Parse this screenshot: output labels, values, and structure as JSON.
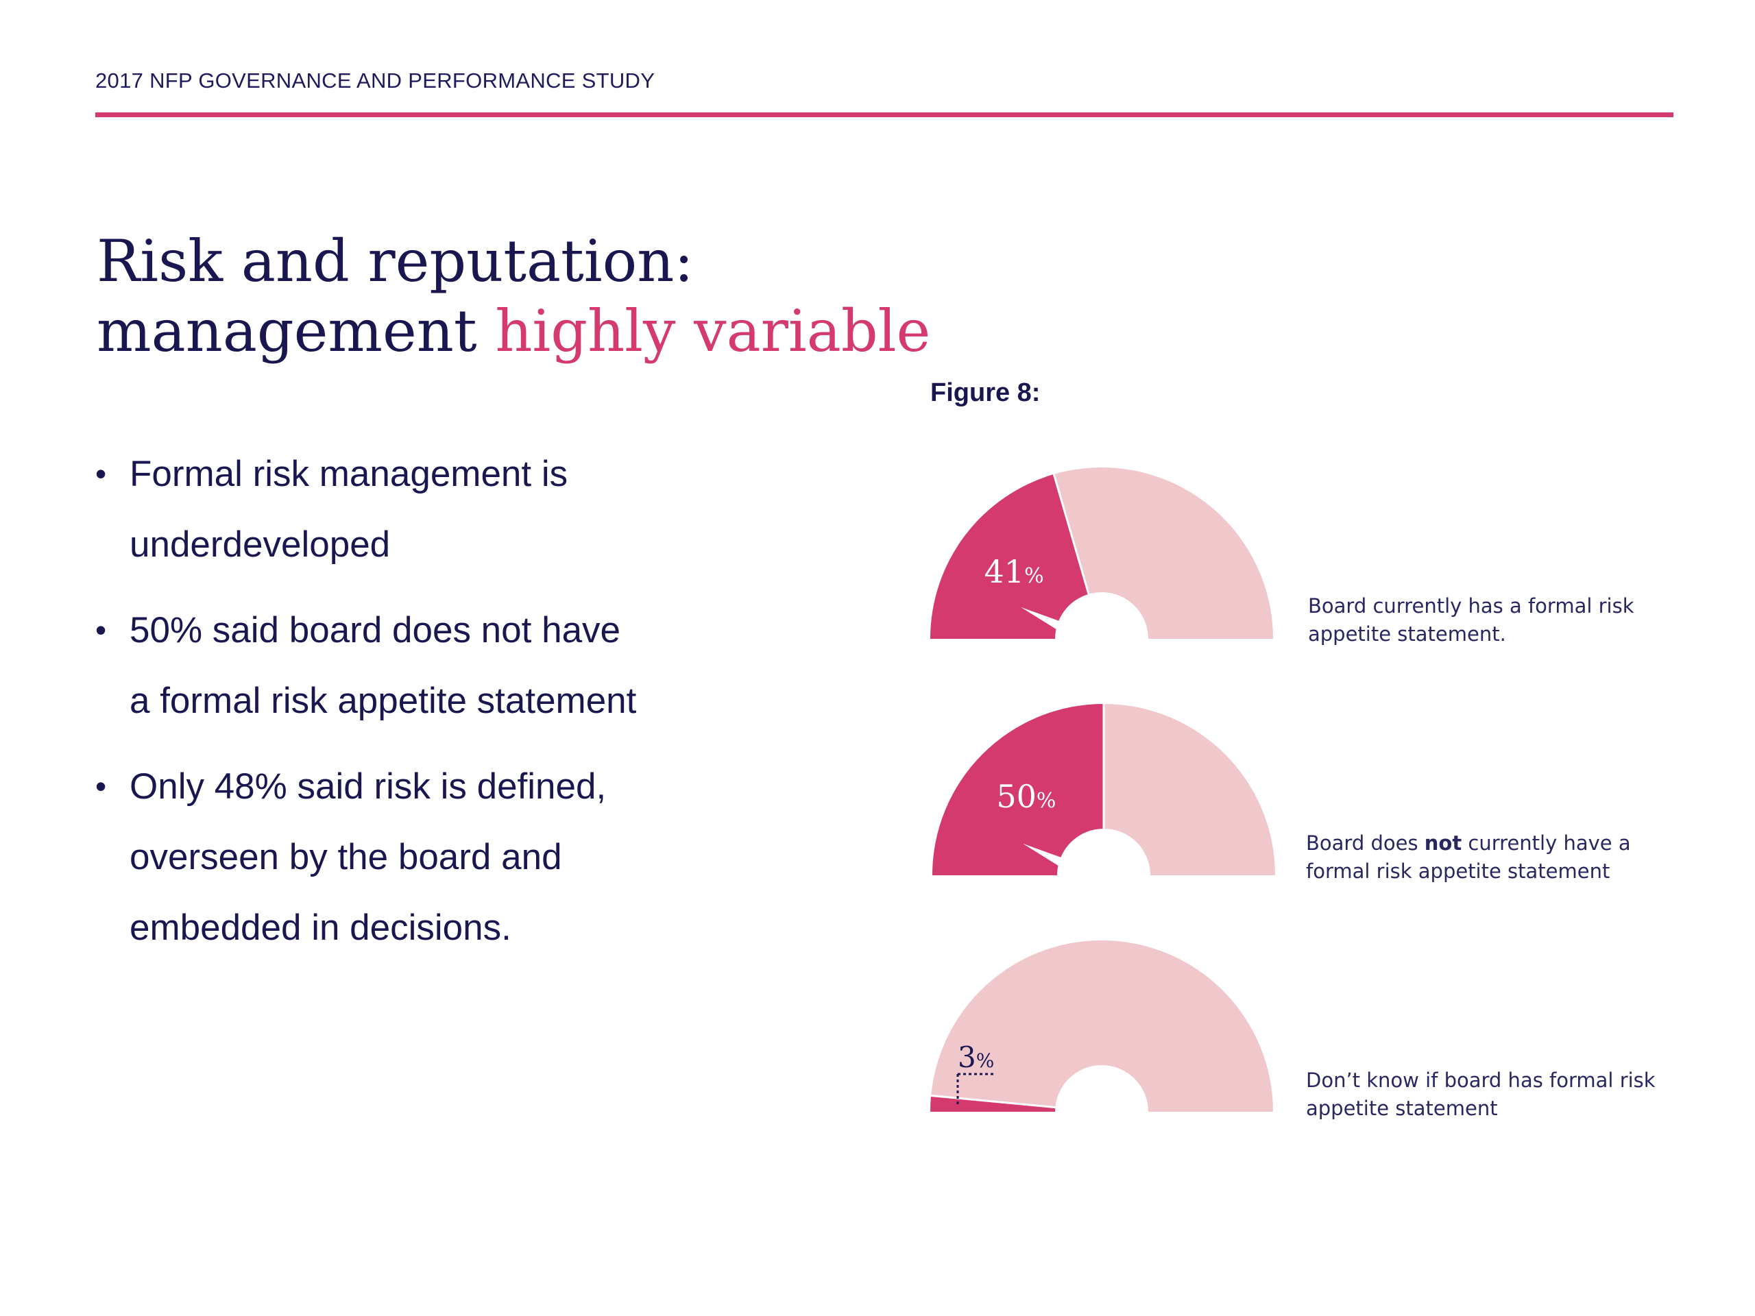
{
  "header": {
    "title": "2017 NFP GOVERNANCE AND PERFORMANCE STUDY"
  },
  "heading": {
    "line1": "Risk and reputation:",
    "line2_plain": "management ",
    "line2_accent": "highly variable"
  },
  "bullets": [
    {
      "line1": "Formal risk management is",
      "line2": "underdeveloped"
    },
    {
      "line1": "50% said board does not have",
      "line2": "a formal risk appetite statement"
    },
    {
      "line1": "Only 48% said risk is defined,",
      "line2": "overseen by the board and",
      "line3": "embedded in decisions."
    }
  ],
  "figure": {
    "label": "Figure 8:"
  },
  "colors": {
    "accent": "#d43a6e",
    "light": "#f0c8cc",
    "text": "#1a1650"
  },
  "chart_data": {
    "type": "pie",
    "style": "semicircle-gauge",
    "unit": "%",
    "items": [
      {
        "value": 41,
        "value_label": "41",
        "desc_before": "Board currently has a formal risk appetite statement.",
        "desc_bold": "",
        "desc_after": ""
      },
      {
        "value": 50,
        "value_label": "50",
        "desc_before": "Board does ",
        "desc_bold": "not",
        "desc_after": " currently have a formal risk appetite statement"
      },
      {
        "value": 3,
        "value_label": "3",
        "desc_before": "Don’t know if board has formal risk appetite statement",
        "desc_bold": "",
        "desc_after": ""
      }
    ]
  }
}
